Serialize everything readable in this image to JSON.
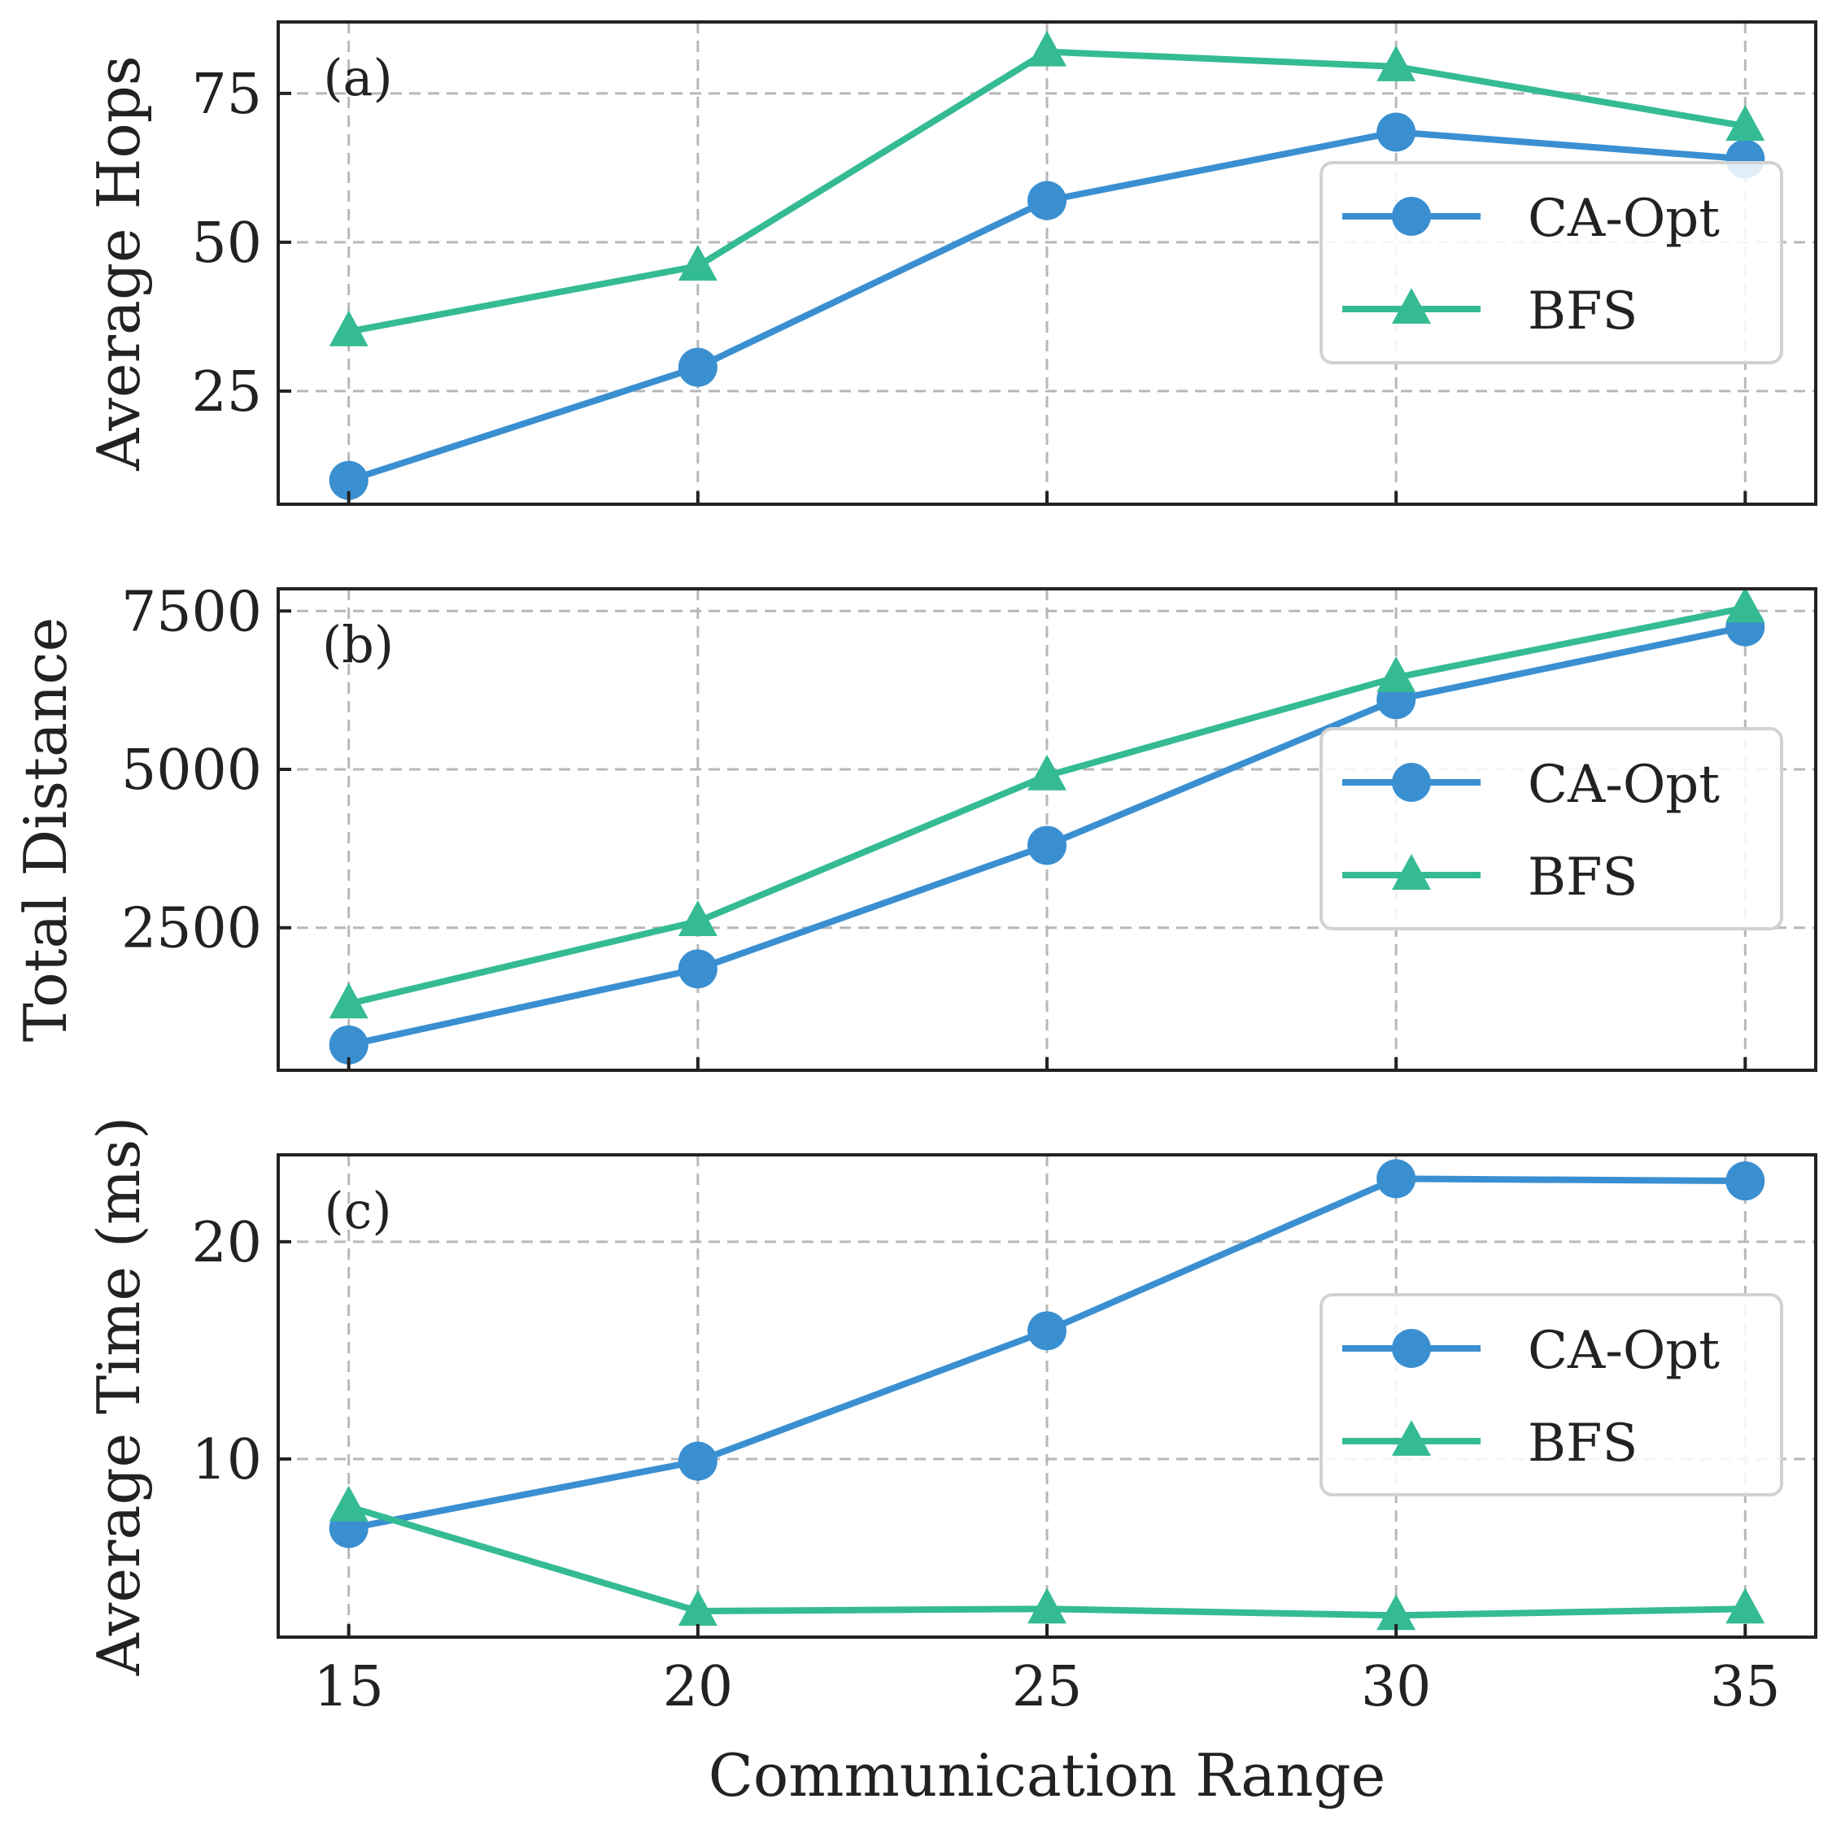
{
  "chart_data": [
    {
      "type": "line",
      "panel_label": "(a)",
      "x": [
        15,
        20,
        25,
        30,
        35
      ],
      "ylabel": "Average Hops",
      "ylim": [
        6,
        87
      ],
      "yticks": [
        25,
        50,
        75
      ],
      "series": [
        {
          "name": "CA-Opt",
          "marker": "circle",
          "color": "#3a8fd1",
          "values": [
            10,
            29,
            57,
            68.5,
            64
          ]
        },
        {
          "name": "BFS",
          "marker": "triangle",
          "color": "#35bb94",
          "values": [
            35,
            46,
            82,
            79.5,
            69.5
          ]
        }
      ],
      "legend": "right"
    },
    {
      "type": "line",
      "panel_label": "(b)",
      "x": [
        15,
        20,
        25,
        30,
        35
      ],
      "ylabel": "Total Distance",
      "ylim": [
        250,
        7850
      ],
      "yticks": [
        2500,
        5000,
        7500
      ],
      "series": [
        {
          "name": "CA-Opt",
          "marker": "circle",
          "color": "#3a8fd1",
          "values": [
            650,
            1850,
            3800,
            6100,
            7250
          ]
        },
        {
          "name": "BFS",
          "marker": "triangle",
          "color": "#35bb94",
          "values": [
            1300,
            2600,
            4900,
            6450,
            7550
          ]
        }
      ],
      "legend": "right"
    },
    {
      "type": "line",
      "panel_label": "(c)",
      "x": [
        15,
        20,
        25,
        30,
        35
      ],
      "xlabel": "Communication Range",
      "xticks": [
        15,
        20,
        25,
        30,
        35
      ],
      "ylabel": "Average Time (ms)",
      "ylim": [
        1.8,
        24
      ],
      "yticks": [
        10,
        20
      ],
      "series": [
        {
          "name": "CA-Opt",
          "marker": "circle",
          "color": "#3a8fd1",
          "values": [
            6.8,
            9.9,
            15.9,
            22.9,
            22.8
          ]
        },
        {
          "name": "BFS",
          "marker": "triangle",
          "color": "#35bb94",
          "values": [
            7.8,
            3.0,
            3.1,
            2.8,
            3.1
          ]
        }
      ],
      "legend": "right"
    }
  ]
}
